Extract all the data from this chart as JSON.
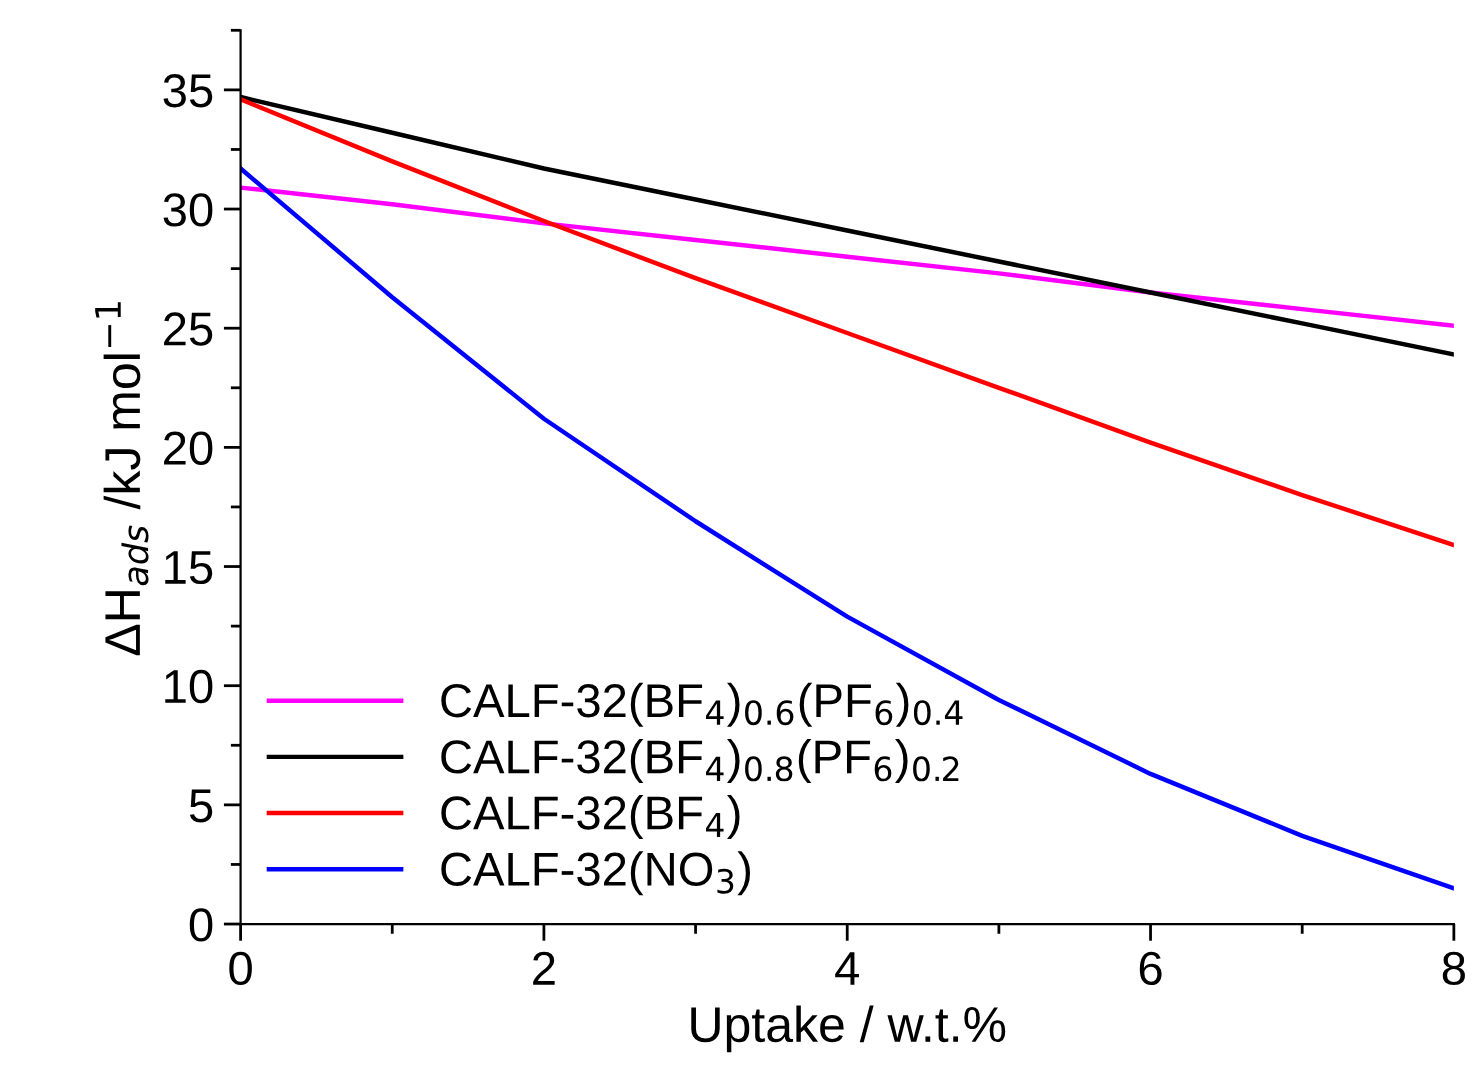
{
  "chart_data": {
    "type": "line",
    "xlabel": "Uptake / w.t.%",
    "ylabel": "ΔH$_{ads}$ /kJ mol$^{−1}$",
    "x": [
      0,
      1,
      2,
      3,
      4,
      5,
      6,
      7,
      8
    ],
    "series": [
      {
        "name": "CALF-32(BF$_{4}$)$_{0.6}$(PF$_{6}$)$_{0.4}$",
        "color": "#ff00ff",
        "values": [
          30.9,
          30.2,
          29.4,
          28.7,
          28.0,
          27.3,
          26.5,
          25.8,
          25.1
        ]
      },
      {
        "name": "CALF-32(BF$_{4}$)$_{0.8}$(PF$_{6}$)$_{0.2}$",
        "color": "#000000",
        "values": [
          34.7,
          33.2,
          31.7,
          30.4,
          29.1,
          27.8,
          26.5,
          25.2,
          23.9
        ]
      },
      {
        "name": "CALF-32(BF$_{4}$)",
        "color": "#ff0000",
        "values": [
          34.6,
          32.0,
          29.5,
          27.1,
          24.8,
          22.5,
          20.2,
          18.0,
          15.9
        ]
      },
      {
        "name": "CALF-32(NO$_{3}$)",
        "color": "#0000ff",
        "values": [
          31.7,
          26.3,
          21.2,
          16.9,
          12.9,
          9.4,
          6.3,
          3.7,
          1.5
        ]
      }
    ],
    "xlim": [
      0,
      8
    ],
    "xticks": [
      0,
      2,
      4,
      6,
      8
    ],
    "ylim": [
      0,
      37.5
    ],
    "yticks": [
      0,
      5,
      10,
      15,
      20,
      25,
      30,
      35
    ],
    "legend": "bottom left",
    "grid": false,
    "marker": "none",
    "line_style": "solid"
  }
}
